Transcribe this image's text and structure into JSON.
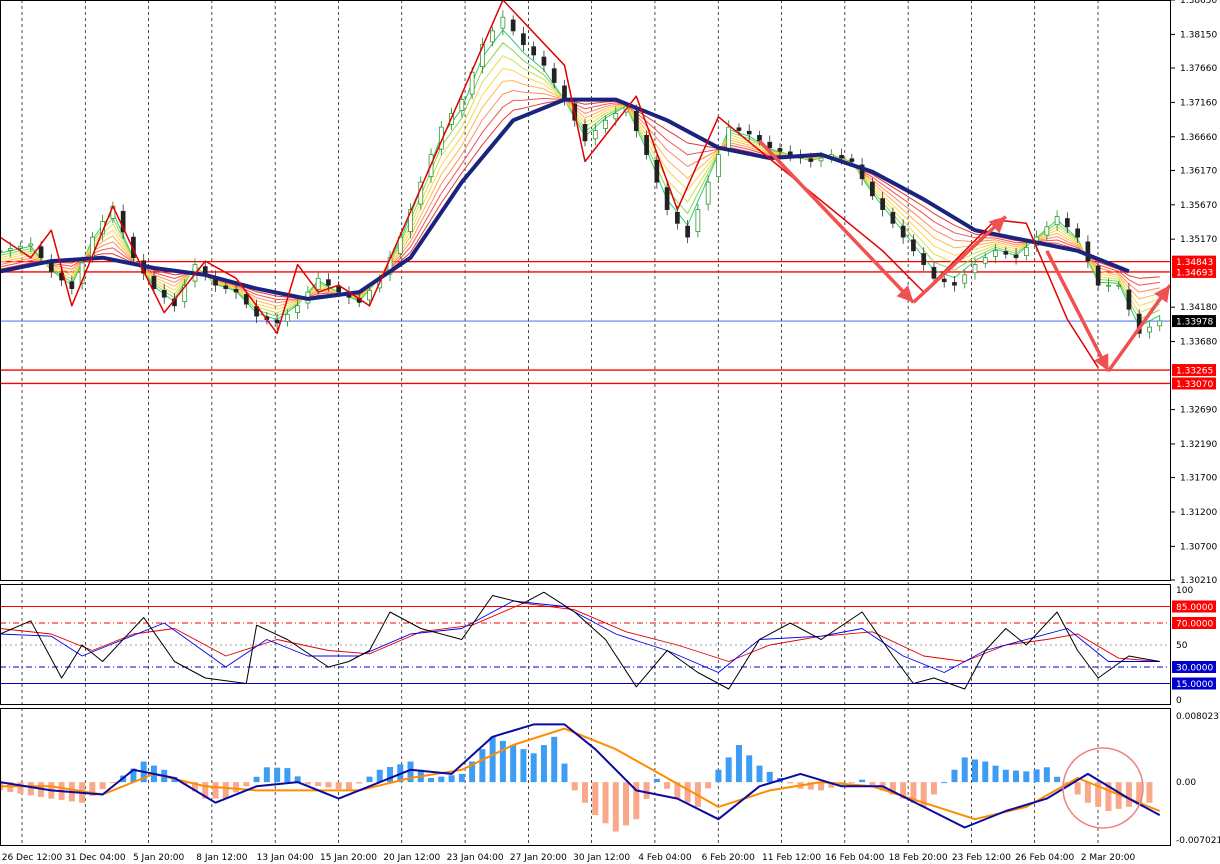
{
  "chart_data": [
    {
      "type": "candlestick",
      "panel": "price",
      "x_labels": [
        "26 Dec 12:00",
        "31 Dec 04:00",
        "5 Jan 20:00",
        "8 Jan 12:00",
        "13 Jan 04:00",
        "15 Jan 20:00",
        "20 Jan 12:00",
        "23 Jan 04:00",
        "27 Jan 20:00",
        "30 Jan 12:00",
        "4 Feb 04:00",
        "6 Feb 20:00",
        "11 Feb 12:00",
        "16 Feb 04:00",
        "18 Feb 20:00",
        "23 Feb 12:00",
        "26 Feb 04:00",
        "2 Mar 20:00"
      ],
      "y_ticks": [
        "1.38650",
        "1.38150",
        "1.37660",
        "1.37160",
        "1.36660",
        "1.36170",
        "1.35670",
        "1.35170",
        "1.34180",
        "1.33680",
        "1.32690",
        "1.32190",
        "1.31700",
        "1.31200",
        "1.30700",
        "1.30210"
      ],
      "ylim": [
        1.3021,
        1.3865
      ],
      "close_path": [
        [
          0,
          1.35
        ],
        [
          3,
          1.351
        ],
        [
          5,
          1.347
        ],
        [
          7,
          1.3445
        ],
        [
          9,
          1.352
        ],
        [
          11,
          1.3565
        ],
        [
          13,
          1.349
        ],
        [
          15,
          1.3445
        ],
        [
          17,
          1.342
        ],
        [
          19,
          1.348
        ],
        [
          21,
          1.345
        ],
        [
          23,
          1.344
        ],
        [
          25,
          1.3405
        ],
        [
          27,
          1.3395
        ],
        [
          29,
          1.342
        ],
        [
          31,
          1.346
        ],
        [
          33,
          1.344
        ],
        [
          35,
          1.3425
        ],
        [
          37,
          1.346
        ],
        [
          39,
          1.352
        ],
        [
          41,
          1.36
        ],
        [
          43,
          1.368
        ],
        [
          45,
          1.372
        ],
        [
          47,
          1.38
        ],
        [
          49,
          1.384
        ],
        [
          51,
          1.38
        ],
        [
          53,
          1.377
        ],
        [
          55,
          1.372
        ],
        [
          57,
          1.366
        ],
        [
          59,
          1.369
        ],
        [
          61,
          1.371
        ],
        [
          63,
          1.364
        ],
        [
          65,
          1.356
        ],
        [
          67,
          1.352
        ],
        [
          69,
          1.36
        ],
        [
          71,
          1.368
        ],
        [
          73,
          1.367
        ],
        [
          75,
          1.365
        ],
        [
          77,
          1.364
        ],
        [
          79,
          1.363
        ],
        [
          81,
          1.364
        ],
        [
          83,
          1.363
        ],
        [
          85,
          1.358
        ],
        [
          87,
          1.354
        ],
        [
          89,
          1.35
        ],
        [
          91,
          1.346
        ],
        [
          93,
          1.345
        ],
        [
          95,
          1.348
        ],
        [
          97,
          1.35
        ],
        [
          99,
          1.349
        ],
        [
          101,
          1.352
        ],
        [
          103,
          1.355
        ],
        [
          105,
          1.352
        ],
        [
          107,
          1.345
        ],
        [
          109,
          1.345
        ],
        [
          111,
          1.338
        ],
        [
          113,
          1.3398
        ]
      ],
      "zigzag": [
        [
          0,
          1.352
        ],
        [
          3,
          1.349
        ],
        [
          5,
          1.353
        ],
        [
          7,
          1.342
        ],
        [
          11,
          1.3565
        ],
        [
          14,
          1.347
        ],
        [
          16,
          1.341
        ],
        [
          20,
          1.3485
        ],
        [
          23,
          1.346
        ],
        [
          27,
          1.338
        ],
        [
          29,
          1.348
        ],
        [
          31,
          1.344
        ],
        [
          33,
          1.345
        ],
        [
          36,
          1.342
        ],
        [
          49,
          1.3865
        ],
        [
          55,
          1.377
        ],
        [
          57,
          1.363
        ],
        [
          62,
          1.3725
        ],
        [
          66,
          1.356
        ],
        [
          70,
          1.3695
        ],
        [
          86,
          1.35
        ],
        [
          90,
          1.344
        ],
        [
          97,
          1.3545
        ],
        [
          100,
          1.354
        ],
        [
          104,
          1.34
        ],
        [
          107,
          1.333
        ]
      ],
      "ma_thick": [
        [
          0,
          1.347
        ],
        [
          5,
          1.3485
        ],
        [
          10,
          1.349
        ],
        [
          15,
          1.3475
        ],
        [
          20,
          1.3465
        ],
        [
          25,
          1.3445
        ],
        [
          30,
          1.343
        ],
        [
          35,
          1.344
        ],
        [
          40,
          1.349
        ],
        [
          45,
          1.36
        ],
        [
          50,
          1.369
        ],
        [
          55,
          1.372
        ],
        [
          60,
          1.372
        ],
        [
          65,
          1.369
        ],
        [
          70,
          1.365
        ],
        [
          75,
          1.3635
        ],
        [
          80,
          1.364
        ],
        [
          85,
          1.3615
        ],
        [
          90,
          1.3575
        ],
        [
          95,
          1.353
        ],
        [
          100,
          1.3515
        ],
        [
          105,
          1.35
        ],
        [
          110,
          1.347
        ]
      ],
      "h_levels": [
        {
          "value": "1.34843",
          "color": "#ff0000"
        },
        {
          "value": "1.34693",
          "color": "#ff0000"
        },
        {
          "value": "1.33978",
          "color": "#000000"
        },
        {
          "value": "1.33265",
          "color": "#ff0000"
        },
        {
          "value": "1.33070",
          "color": "#ff0000"
        }
      ],
      "arrows": [
        [
          [
            74,
            1.366
          ],
          [
            89,
            1.3425
          ]
        ],
        [
          [
            89,
            1.3425
          ],
          [
            98,
            1.355
          ]
        ],
        [
          [
            102,
            1.35
          ],
          [
            108,
            1.3325
          ]
        ],
        [
          [
            108,
            1.3325
          ],
          [
            114,
            1.345
          ]
        ]
      ]
    },
    {
      "type": "line",
      "panel": "oscillator",
      "y_ticks": [
        "100",
        "50",
        "0"
      ],
      "ylim": [
        0,
        100
      ],
      "levels": [
        {
          "value": "85.0000",
          "color": "#ff0000"
        },
        {
          "value": "70.0000",
          "color": "#ff0000"
        },
        {
          "value": "30.0000",
          "color": "#0000cc"
        },
        {
          "value": "15.0000",
          "color": "#0000cc"
        }
      ],
      "series_black": [
        [
          0,
          60
        ],
        [
          3,
          72
        ],
        [
          6,
          20
        ],
        [
          8,
          50
        ],
        [
          10,
          35
        ],
        [
          14,
          75
        ],
        [
          17,
          35
        ],
        [
          20,
          20
        ],
        [
          24,
          15
        ],
        [
          25,
          68
        ],
        [
          28,
          55
        ],
        [
          32,
          30
        ],
        [
          34,
          35
        ],
        [
          36,
          45
        ],
        [
          38,
          80
        ],
        [
          41,
          65
        ],
        [
          45,
          55
        ],
        [
          48,
          95
        ],
        [
          51,
          88
        ],
        [
          53,
          98
        ],
        [
          56,
          80
        ],
        [
          59,
          55
        ],
        [
          62,
          12
        ],
        [
          65,
          45
        ],
        [
          68,
          25
        ],
        [
          71,
          10
        ],
        [
          74,
          55
        ],
        [
          77,
          70
        ],
        [
          80,
          55
        ],
        [
          84,
          80
        ],
        [
          87,
          40
        ],
        [
          89,
          15
        ],
        [
          91,
          20
        ],
        [
          94,
          10
        ],
        [
          96,
          45
        ],
        [
          98,
          65
        ],
        [
          100,
          50
        ],
        [
          103,
          80
        ],
        [
          105,
          45
        ],
        [
          107,
          20
        ],
        [
          110,
          40
        ],
        [
          113,
          35
        ]
      ],
      "series_blue": [
        [
          0,
          60
        ],
        [
          5,
          58
        ],
        [
          8,
          40
        ],
        [
          12,
          55
        ],
        [
          16,
          70
        ],
        [
          22,
          30
        ],
        [
          26,
          55
        ],
        [
          30,
          40
        ],
        [
          35,
          40
        ],
        [
          40,
          60
        ],
        [
          45,
          65
        ],
        [
          50,
          90
        ],
        [
          55,
          85
        ],
        [
          60,
          60
        ],
        [
          65,
          45
        ],
        [
          70,
          25
        ],
        [
          74,
          55
        ],
        [
          80,
          58
        ],
        [
          84,
          65
        ],
        [
          88,
          40
        ],
        [
          92,
          25
        ],
        [
          96,
          45
        ],
        [
          100,
          55
        ],
        [
          104,
          65
        ],
        [
          108,
          35
        ],
        [
          113,
          35
        ]
      ],
      "series_red": [
        [
          0,
          65
        ],
        [
          5,
          60
        ],
        [
          9,
          45
        ],
        [
          13,
          60
        ],
        [
          17,
          65
        ],
        [
          22,
          40
        ],
        [
          27,
          55
        ],
        [
          32,
          45
        ],
        [
          36,
          42
        ],
        [
          41,
          62
        ],
        [
          46,
          68
        ],
        [
          51,
          88
        ],
        [
          56,
          82
        ],
        [
          61,
          62
        ],
        [
          66,
          50
        ],
        [
          71,
          35
        ],
        [
          75,
          50
        ],
        [
          80,
          58
        ],
        [
          85,
          62
        ],
        [
          90,
          40
        ],
        [
          94,
          35
        ],
        [
          98,
          50
        ],
        [
          102,
          55
        ],
        [
          105,
          60
        ],
        [
          109,
          38
        ],
        [
          113,
          35
        ]
      ]
    },
    {
      "type": "bar",
      "panel": "macd",
      "y_ticks": [
        "0.0080237",
        "0.00",
        "-0.007021"
      ],
      "ylim": [
        -0.007021,
        0.0080237
      ],
      "histogram": [
        [
          0,
          -0.001
        ],
        [
          5,
          -0.002
        ],
        [
          8,
          -0.0025
        ],
        [
          12,
          0.0008
        ],
        [
          14,
          0.0025
        ],
        [
          16,
          0.0015
        ],
        [
          20,
          -0.002
        ],
        [
          22,
          -0.002
        ],
        [
          24,
          -0.0005
        ],
        [
          26,
          0.0018
        ],
        [
          28,
          0.0017
        ],
        [
          30,
          -0.0003
        ],
        [
          34,
          -0.001
        ],
        [
          37,
          0.0015
        ],
        [
          40,
          0.0025
        ],
        [
          42,
          0.0005
        ],
        [
          45,
          0.001
        ],
        [
          48,
          0.0055
        ],
        [
          50,
          0.0045
        ],
        [
          52,
          0.0035
        ],
        [
          54,
          0.0055
        ],
        [
          56,
          -0.001
        ],
        [
          58,
          -0.004
        ],
        [
          60,
          -0.006
        ],
        [
          62,
          -0.0045
        ],
        [
          64,
          0.0004
        ],
        [
          66,
          -0.002
        ],
        [
          68,
          -0.003
        ],
        [
          70,
          0.0015
        ],
        [
          72,
          0.0045
        ],
        [
          74,
          0.002
        ],
        [
          76,
          0.0005
        ],
        [
          78,
          -0.0008
        ],
        [
          80,
          -0.001
        ],
        [
          84,
          0.0003
        ],
        [
          86,
          -0.001
        ],
        [
          88,
          -0.002
        ],
        [
          90,
          -0.003
        ],
        [
          92,
          0.0
        ],
        [
          94,
          0.003
        ],
        [
          96,
          0.0025
        ],
        [
          98,
          0.0015
        ],
        [
          100,
          0.0013
        ],
        [
          102,
          0.0018
        ],
        [
          104,
          -0.0005
        ],
        [
          106,
          -0.0025
        ],
        [
          108,
          -0.0035
        ],
        [
          110,
          -0.003
        ],
        [
          112,
          -0.0025
        ]
      ],
      "macd_line": [
        [
          0,
          0.0
        ],
        [
          5,
          -0.001
        ],
        [
          10,
          -0.0015
        ],
        [
          13,
          0.0015
        ],
        [
          17,
          0.0005
        ],
        [
          21,
          -0.0025
        ],
        [
          25,
          -0.0005
        ],
        [
          29,
          0.0
        ],
        [
          33,
          -0.002
        ],
        [
          36,
          -0.0005
        ],
        [
          40,
          0.0015
        ],
        [
          44,
          0.001
        ],
        [
          48,
          0.0055
        ],
        [
          52,
          0.007
        ],
        [
          55,
          0.007
        ],
        [
          58,
          0.004
        ],
        [
          62,
          -0.001
        ],
        [
          66,
          -0.002
        ],
        [
          70,
          -0.0045
        ],
        [
          74,
          -0.0005
        ],
        [
          78,
          0.001
        ],
        [
          82,
          -0.0005
        ],
        [
          86,
          -0.0005
        ],
        [
          90,
          -0.003
        ],
        [
          94,
          -0.0055
        ],
        [
          98,
          -0.0035
        ],
        [
          102,
          -0.002
        ],
        [
          106,
          0.001
        ],
        [
          110,
          -0.002
        ],
        [
          113,
          -0.004
        ]
      ],
      "signal_line": [
        [
          0,
          -0.0005
        ],
        [
          5,
          -0.0005
        ],
        [
          10,
          -0.0015
        ],
        [
          15,
          0.001
        ],
        [
          20,
          -0.0005
        ],
        [
          25,
          -0.001
        ],
        [
          30,
          -0.001
        ],
        [
          35,
          -0.001
        ],
        [
          40,
          0.0005
        ],
        [
          45,
          0.0015
        ],
        [
          50,
          0.0045
        ],
        [
          55,
          0.0065
        ],
        [
          60,
          0.004
        ],
        [
          65,
          0.0005
        ],
        [
          70,
          -0.003
        ],
        [
          75,
          -0.001
        ],
        [
          80,
          0.0
        ],
        [
          85,
          -0.0005
        ],
        [
          90,
          -0.0025
        ],
        [
          95,
          -0.0045
        ],
        [
          100,
          -0.003
        ],
        [
          105,
          0.0005
        ],
        [
          110,
          -0.002
        ],
        [
          113,
          -0.0035
        ]
      ]
    }
  ]
}
